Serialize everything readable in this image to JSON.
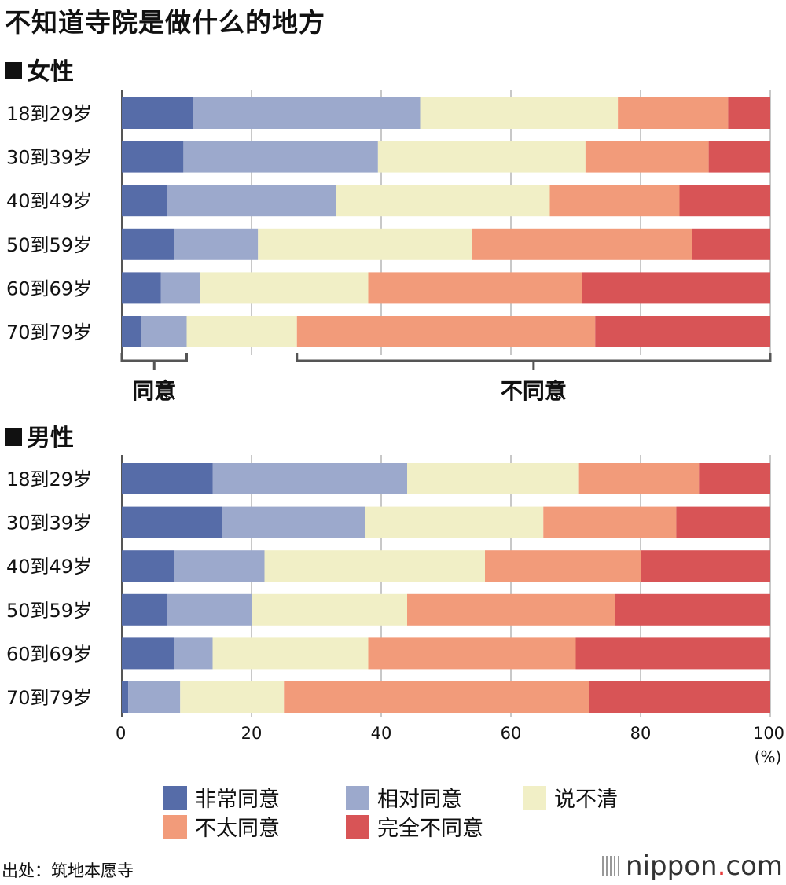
{
  "title": "不知道寺院是做什么的地方",
  "sections": {
    "female": "女性",
    "male": "男性"
  },
  "brackets": {
    "agree": "同意",
    "disagree": "不同意"
  },
  "chart_data": [
    {
      "type": "bar",
      "orientation": "horizontal",
      "stacked": true,
      "group": "女性",
      "categories": [
        "18到29岁",
        "30到39岁",
        "40到49岁",
        "50到59岁",
        "60到69岁",
        "70到79岁"
      ],
      "series": [
        {
          "name": "非常同意",
          "color": "#566ca8",
          "values": [
            11,
            9.5,
            7,
            8,
            6,
            3
          ]
        },
        {
          "name": "相对同意",
          "color": "#9ca9cc",
          "values": [
            35,
            30,
            26,
            13,
            6,
            7
          ]
        },
        {
          "name": "说不清",
          "color": "#f1efc6",
          "values": [
            30.5,
            32,
            33,
            33,
            26,
            17
          ]
        },
        {
          "name": "不太同意",
          "color": "#f29b7a",
          "values": [
            17,
            19,
            20,
            34,
            33,
            46
          ]
        },
        {
          "name": "完全不同意",
          "color": "#d85456",
          "values": [
            6.5,
            9.5,
            14,
            12,
            29,
            27
          ]
        }
      ],
      "xlim": [
        0,
        100
      ]
    },
    {
      "type": "bar",
      "orientation": "horizontal",
      "stacked": true,
      "group": "男性",
      "categories": [
        "18到29岁",
        "30到39岁",
        "40到49岁",
        "50到59岁",
        "60到69岁",
        "70到79岁"
      ],
      "series": [
        {
          "name": "非常同意",
          "color": "#566ca8",
          "values": [
            14,
            15.5,
            8,
            7,
            8,
            1
          ]
        },
        {
          "name": "相对同意",
          "color": "#9ca9cc",
          "values": [
            30,
            22,
            14,
            13,
            6,
            8
          ]
        },
        {
          "name": "说不清",
          "color": "#f1efc6",
          "values": [
            26.5,
            27.5,
            34,
            24,
            24,
            16
          ]
        },
        {
          "name": "不太同意",
          "color": "#f29b7a",
          "values": [
            18.5,
            20.5,
            24,
            32,
            32,
            47
          ]
        },
        {
          "name": "完全不同意",
          "color": "#d85456",
          "values": [
            11,
            14.5,
            20,
            24,
            30,
            28
          ]
        }
      ],
      "xlim": [
        0,
        100
      ],
      "xticks": [
        0,
        20,
        40,
        60,
        80,
        100
      ],
      "xunit": "(%)"
    }
  ],
  "legend": [
    {
      "name": "非常同意",
      "color": "#566ca8"
    },
    {
      "name": "相对同意",
      "color": "#9ca9cc"
    },
    {
      "name": "说不清",
      "color": "#f1efc6"
    },
    {
      "name": "不太同意",
      "color": "#f29b7a"
    },
    {
      "name": "完全不同意",
      "color": "#d85456"
    }
  ],
  "source": "出处：筑地本愿寺",
  "logo": {
    "main": "nippon",
    "dot": ".",
    "suffix": "com"
  }
}
